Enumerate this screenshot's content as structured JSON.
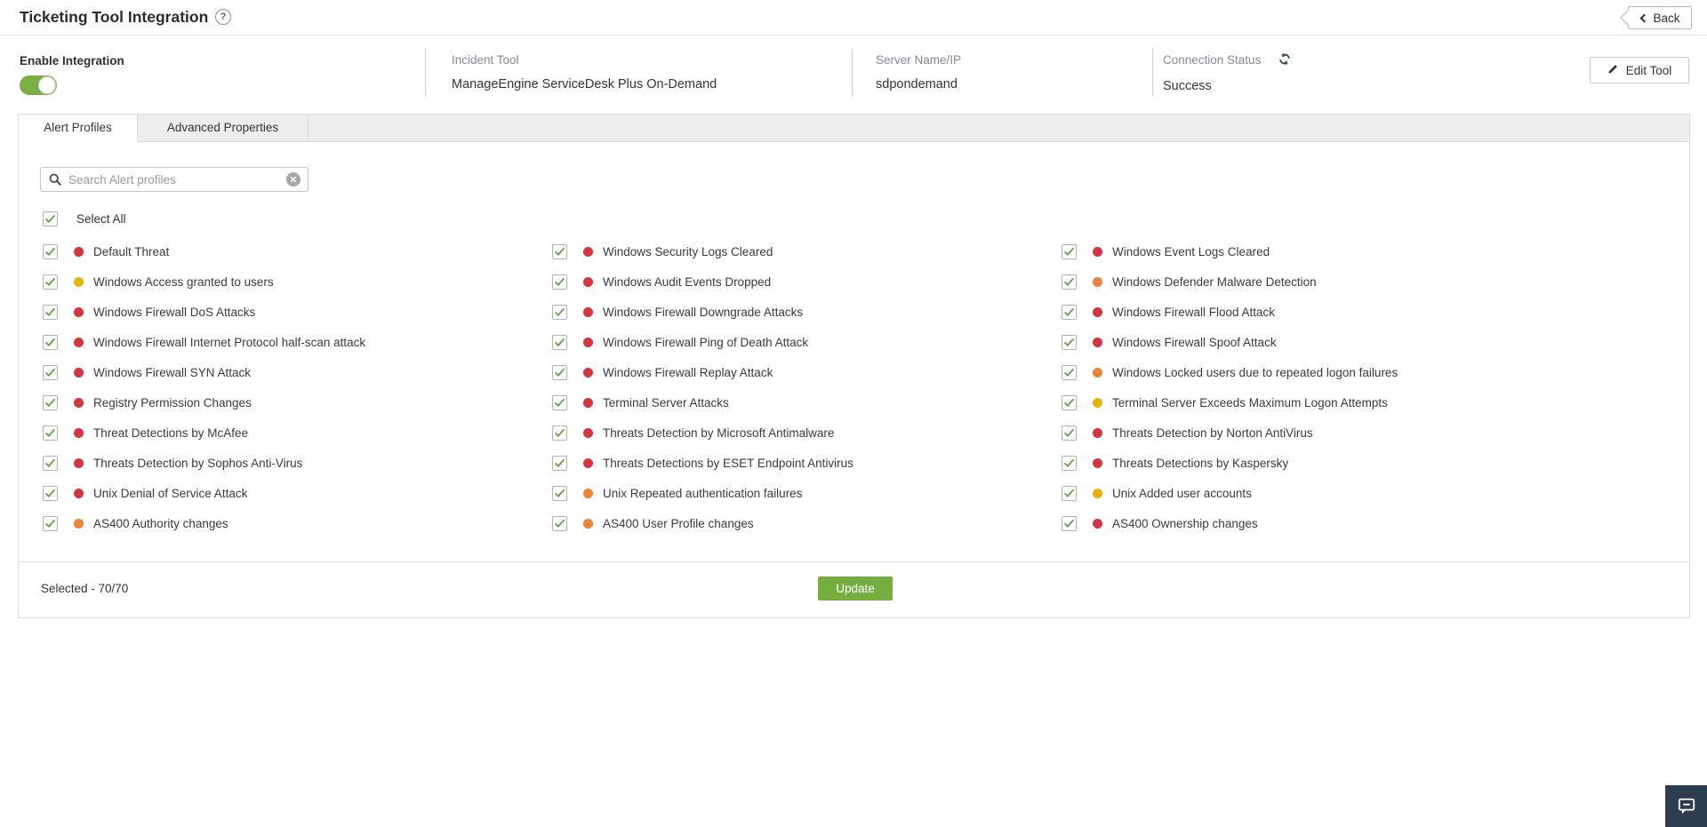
{
  "header": {
    "title": "Ticketing Tool Integration",
    "help_icon": "?",
    "back_label": "Back"
  },
  "info_bar": {
    "enable_label": "Enable Integration",
    "toggle_state": "on",
    "incident_tool": {
      "label": "Incident Tool",
      "value": "ManageEngine ServiceDesk Plus On-Demand"
    },
    "server": {
      "label": "Server Name/IP",
      "value": "sdpondemand"
    },
    "connection": {
      "label": "Connection Status",
      "value": "Success"
    },
    "edit_tool_label": "Edit Tool"
  },
  "tabs": [
    {
      "label": "Alert Profiles",
      "active": true
    },
    {
      "label": "Advanced Properties",
      "active": false
    }
  ],
  "search": {
    "placeholder": "Search Alert profiles",
    "value": ""
  },
  "select_all": {
    "label": "Select All",
    "checked": true
  },
  "severity_colors": {
    "red": "#d5353e",
    "yellow": "#e7b30b",
    "orange": "#ee8435"
  },
  "accent": {
    "green": "#76b043",
    "check_green": "#5ba53c"
  },
  "alert_columns": [
    [
      {
        "label": "Default Threat",
        "severity": "red",
        "checked": true
      },
      {
        "label": "Windows Access granted to users",
        "severity": "yellow",
        "checked": true
      },
      {
        "label": "Windows Firewall DoS Attacks",
        "severity": "red",
        "checked": true
      },
      {
        "label": "Windows Firewall Internet Protocol half-scan attack",
        "severity": "red",
        "checked": true
      },
      {
        "label": "Windows Firewall SYN Attack",
        "severity": "red",
        "checked": true
      },
      {
        "label": "Registry Permission Changes",
        "severity": "red",
        "checked": true
      },
      {
        "label": "Threat Detections by McAfee",
        "severity": "red",
        "checked": true
      },
      {
        "label": "Threats Detection by Sophos Anti-Virus",
        "severity": "red",
        "checked": true
      },
      {
        "label": "Unix Denial of Service Attack",
        "severity": "red",
        "checked": true
      },
      {
        "label": "AS400 Authority changes",
        "severity": "orange",
        "checked": true
      }
    ],
    [
      {
        "label": "Windows Security Logs Cleared",
        "severity": "red",
        "checked": true
      },
      {
        "label": "Windows Audit Events Dropped",
        "severity": "red",
        "checked": true
      },
      {
        "label": "Windows Firewall Downgrade Attacks",
        "severity": "red",
        "checked": true
      },
      {
        "label": "Windows Firewall Ping of Death Attack",
        "severity": "red",
        "checked": true
      },
      {
        "label": "Windows Firewall Replay Attack",
        "severity": "red",
        "checked": true
      },
      {
        "label": "Terminal Server Attacks",
        "severity": "red",
        "checked": true
      },
      {
        "label": "Threats Detection by Microsoft Antimalware",
        "severity": "red",
        "checked": true
      },
      {
        "label": "Threats Detections by ESET Endpoint Antivirus",
        "severity": "red",
        "checked": true
      },
      {
        "label": "Unix Repeated authentication failures",
        "severity": "orange",
        "checked": true
      },
      {
        "label": "AS400 User Profile changes",
        "severity": "orange",
        "checked": true
      }
    ],
    [
      {
        "label": "Windows Event Logs Cleared",
        "severity": "red",
        "checked": true
      },
      {
        "label": "Windows Defender Malware Detection",
        "severity": "orange",
        "checked": true
      },
      {
        "label": "Windows Firewall Flood Attack",
        "severity": "red",
        "checked": true
      },
      {
        "label": "Windows Firewall Spoof Attack",
        "severity": "red",
        "checked": true
      },
      {
        "label": "Windows Locked users due to repeated logon failures",
        "severity": "orange",
        "checked": true
      },
      {
        "label": "Terminal Server Exceeds Maximum Logon Attempts",
        "severity": "yellow",
        "checked": true
      },
      {
        "label": "Threats Detection by Norton AntiVirus",
        "severity": "red",
        "checked": true
      },
      {
        "label": "Threats Detections by Kaspersky",
        "severity": "red",
        "checked": true
      },
      {
        "label": "Unix Added user accounts",
        "severity": "yellow",
        "checked": true
      },
      {
        "label": "AS400 Ownership changes",
        "severity": "red",
        "checked": true
      }
    ]
  ],
  "footer": {
    "selected_text": "Selected - 70/70",
    "update_label": "Update"
  }
}
